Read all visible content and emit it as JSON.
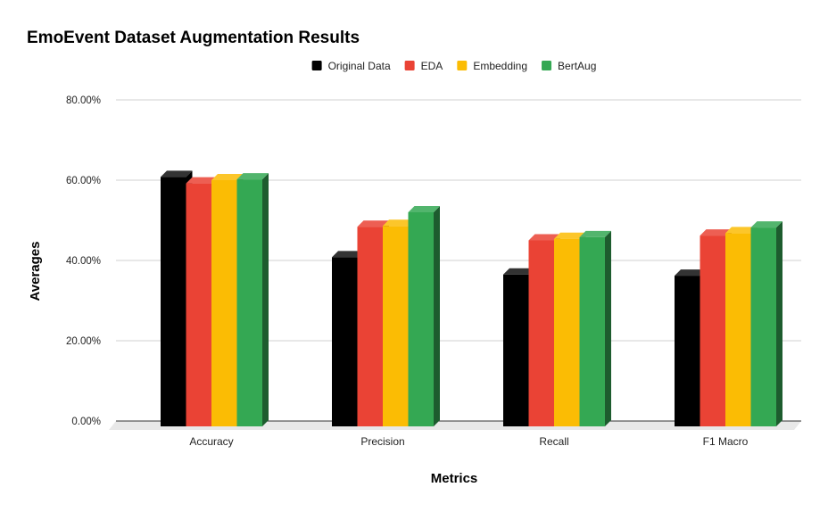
{
  "chart_data": {
    "type": "bar",
    "title": "EmoEvent Dataset Augmentation Results",
    "xlabel": "Metrics",
    "ylabel": "Averages",
    "categories": [
      "Accuracy",
      "Precision",
      "Recall",
      "F1 Macro"
    ],
    "series": [
      {
        "name": "Original Data",
        "color": "#000000",
        "values": [
          60.8,
          40.8,
          36.5,
          36.2
        ]
      },
      {
        "name": "EDA",
        "color": "#ea4335",
        "values": [
          59.2,
          48.4,
          45.0,
          46.2
        ]
      },
      {
        "name": "Embedding",
        "color": "#fbbc04",
        "values": [
          60.0,
          48.6,
          45.4,
          46.8
        ]
      },
      {
        "name": "BertAug",
        "color": "#34a853",
        "values": [
          60.2,
          52.0,
          45.8,
          48.2
        ]
      }
    ],
    "ylim": [
      0,
      80
    ],
    "yticks": [
      0,
      20,
      40,
      60,
      80
    ],
    "ytick_labels": [
      "0.00%",
      "20.00%",
      "40.00%",
      "60.00%",
      "80.00%"
    ],
    "legend_position": "top",
    "grid": true,
    "style": "3d"
  }
}
